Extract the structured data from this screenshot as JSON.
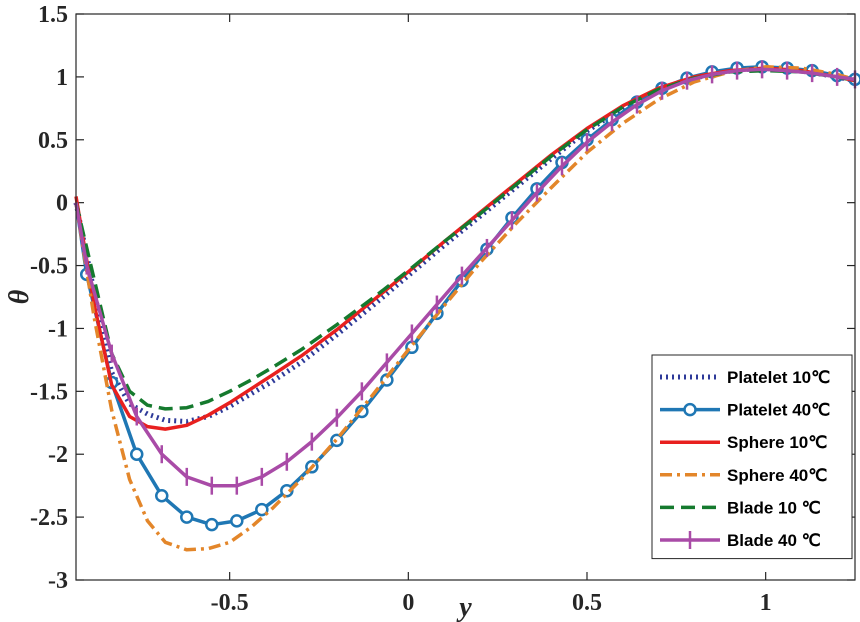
{
  "chart_data": {
    "type": "line",
    "title": "",
    "xlabel": "y",
    "ylabel": "θ",
    "xlim": [
      -0.93,
      1.25
    ],
    "ylim": [
      -3,
      1.5
    ],
    "x_ticks": [
      -0.5,
      0,
      0.5,
      1
    ],
    "x_tick_labels": [
      "-0.5",
      "0",
      "0.5",
      "1"
    ],
    "y_ticks": [
      1.5,
      1,
      0.5,
      0,
      -0.5,
      -1,
      -1.5,
      -2,
      -2.5,
      -3
    ],
    "y_tick_labels": [
      "1.5",
      "1",
      "0.5",
      "0",
      "-0.5",
      "-1",
      "-1.5",
      "-2",
      "-2.5",
      "-3"
    ],
    "grid": false,
    "legend_position": "bottom-right",
    "series": [
      {
        "name": "Platelet 10℃",
        "color": "#2e3a99",
        "style": "dotted",
        "marker": "none",
        "x": [
          -0.93,
          -0.88,
          -0.83,
          -0.78,
          -0.73,
          -0.68,
          -0.62,
          -0.56,
          -0.5,
          -0.44,
          -0.38,
          -0.3,
          -0.2,
          -0.1,
          0,
          0.1,
          0.2,
          0.3,
          0.4,
          0.5,
          0.6,
          0.7,
          0.8,
          0.9,
          1.0,
          1.1,
          1.2,
          1.25
        ],
        "y": [
          0.0,
          -0.7,
          -1.35,
          -1.6,
          -1.68,
          -1.73,
          -1.74,
          -1.7,
          -1.62,
          -1.52,
          -1.42,
          -1.27,
          -1.05,
          -0.82,
          -0.58,
          -0.34,
          -0.11,
          0.12,
          0.35,
          0.57,
          0.75,
          0.9,
          0.99,
          1.05,
          1.07,
          1.05,
          1.0,
          0.97
        ]
      },
      {
        "name": "Platelet 40℃",
        "color": "#1f77b4",
        "style": "solid",
        "marker": "circle",
        "x": [
          -0.93,
          -0.9,
          -0.83,
          -0.76,
          -0.69,
          -0.62,
          -0.55,
          -0.48,
          -0.41,
          -0.34,
          -0.27,
          -0.2,
          -0.13,
          -0.06,
          0.01,
          0.08,
          0.15,
          0.22,
          0.29,
          0.36,
          0.43,
          0.5,
          0.57,
          0.64,
          0.71,
          0.78,
          0.85,
          0.92,
          0.99,
          1.06,
          1.13,
          1.2,
          1.25
        ],
        "y": [
          0.0,
          -0.57,
          -1.43,
          -2.0,
          -2.33,
          -2.5,
          -2.56,
          -2.53,
          -2.44,
          -2.29,
          -2.1,
          -1.89,
          -1.66,
          -1.41,
          -1.15,
          -0.88,
          -0.62,
          -0.37,
          -0.12,
          0.11,
          0.32,
          0.5,
          0.66,
          0.8,
          0.91,
          0.99,
          1.04,
          1.07,
          1.08,
          1.07,
          1.05,
          1.01,
          0.98
        ]
      },
      {
        "name": "Sphere 10℃",
        "color": "#e8201f",
        "style": "solid",
        "marker": "none",
        "x": [
          -0.93,
          -0.88,
          -0.83,
          -0.78,
          -0.73,
          -0.68,
          -0.62,
          -0.56,
          -0.5,
          -0.44,
          -0.38,
          -0.3,
          -0.2,
          -0.1,
          0,
          0.1,
          0.2,
          0.3,
          0.4,
          0.5,
          0.6,
          0.7,
          0.8,
          0.9,
          1.0,
          1.1,
          1.2,
          1.25
        ],
        "y": [
          0.05,
          -0.8,
          -1.45,
          -1.7,
          -1.78,
          -1.8,
          -1.77,
          -1.69,
          -1.59,
          -1.48,
          -1.37,
          -1.22,
          -1.01,
          -0.78,
          -0.55,
          -0.31,
          -0.08,
          0.15,
          0.38,
          0.59,
          0.77,
          0.91,
          1.0,
          1.05,
          1.07,
          1.05,
          1.0,
          0.97
        ]
      },
      {
        "name": "Sphere 40℃",
        "color": "#e3862a",
        "style": "dashdot",
        "marker": "none",
        "x": [
          -0.93,
          -0.88,
          -0.83,
          -0.78,
          -0.73,
          -0.68,
          -0.62,
          -0.56,
          -0.5,
          -0.44,
          -0.38,
          -0.3,
          -0.2,
          -0.1,
          0,
          0.1,
          0.2,
          0.3,
          0.4,
          0.5,
          0.6,
          0.7,
          0.8,
          0.9,
          1.0,
          1.1,
          1.2,
          1.25
        ],
        "y": [
          0.0,
          -0.9,
          -1.65,
          -2.2,
          -2.53,
          -2.7,
          -2.76,
          -2.75,
          -2.7,
          -2.58,
          -2.43,
          -2.2,
          -1.88,
          -1.53,
          -1.17,
          -0.82,
          -0.48,
          -0.17,
          0.12,
          0.4,
          0.63,
          0.82,
          0.96,
          1.04,
          1.08,
          1.07,
          1.02,
          0.98
        ]
      },
      {
        "name": "Blade   10 ℃",
        "color": "#157a2e",
        "style": "dashed",
        "marker": "none",
        "x": [
          -0.93,
          -0.88,
          -0.83,
          -0.78,
          -0.73,
          -0.68,
          -0.62,
          -0.56,
          -0.5,
          -0.44,
          -0.38,
          -0.3,
          -0.2,
          -0.1,
          0,
          0.1,
          0.2,
          0.3,
          0.4,
          0.5,
          0.6,
          0.7,
          0.8,
          0.9,
          1.0,
          1.1,
          1.2,
          1.25
        ],
        "y": [
          0.0,
          -0.6,
          -1.2,
          -1.5,
          -1.61,
          -1.64,
          -1.63,
          -1.58,
          -1.5,
          -1.41,
          -1.31,
          -1.17,
          -0.97,
          -0.76,
          -0.54,
          -0.31,
          -0.09,
          0.14,
          0.37,
          0.58,
          0.76,
          0.9,
          0.99,
          1.04,
          1.05,
          1.04,
          1.0,
          0.97
        ]
      },
      {
        "name": "Blade   40 ℃",
        "color": "#a94ba7",
        "style": "solid",
        "marker": "vline",
        "x": [
          -0.93,
          -0.9,
          -0.83,
          -0.76,
          -0.69,
          -0.62,
          -0.55,
          -0.48,
          -0.41,
          -0.34,
          -0.27,
          -0.2,
          -0.13,
          -0.06,
          0.01,
          0.08,
          0.15,
          0.22,
          0.29,
          0.36,
          0.43,
          0.5,
          0.57,
          0.64,
          0.71,
          0.78,
          0.85,
          0.92,
          0.99,
          1.06,
          1.13,
          1.2,
          1.25
        ],
        "y": [
          0.0,
          -0.5,
          -1.2,
          -1.7,
          -2.0,
          -2.18,
          -2.25,
          -2.25,
          -2.18,
          -2.06,
          -1.9,
          -1.71,
          -1.5,
          -1.27,
          -1.04,
          -0.81,
          -0.58,
          -0.36,
          -0.14,
          0.08,
          0.29,
          0.48,
          0.64,
          0.78,
          0.89,
          0.97,
          1.02,
          1.05,
          1.06,
          1.05,
          1.03,
          1.0,
          0.98
        ]
      }
    ]
  }
}
